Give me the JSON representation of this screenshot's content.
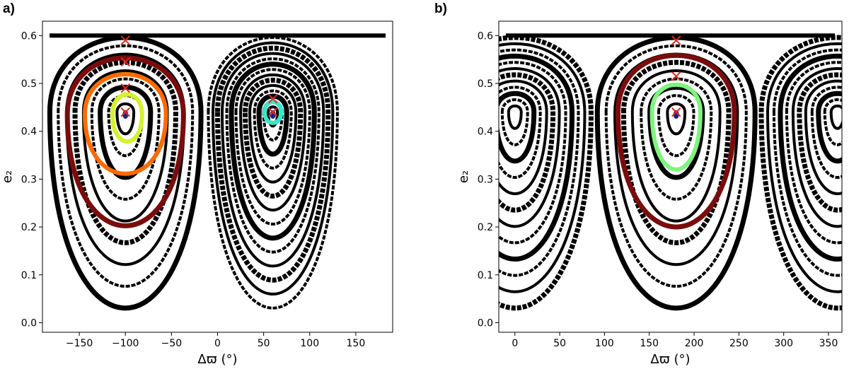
{
  "panels": [
    {
      "label": "a)"
    },
    {
      "label": "b)"
    }
  ],
  "colors": {
    "band": "#000000",
    "dark_red": "#7a0c0c",
    "orange": "#ff6a00",
    "yellow_green": "#d4f22a",
    "cyan": "#34e8c8",
    "light_green": "#7cf57c",
    "marker_red": "#e8241c",
    "center_blue": "#1a237e"
  },
  "chart_data": [
    {
      "type": "scatter",
      "title": "",
      "xlabel": "Δϖ (°)",
      "ylabel": "e₂",
      "xlim": [
        -190,
        190
      ],
      "ylim": [
        -0.02,
        0.63
      ],
      "xticks": [
        -150,
        -100,
        -50,
        0,
        50,
        100,
        150
      ],
      "yticks": [
        0.0,
        0.1,
        0.2,
        0.3,
        0.4,
        0.5,
        0.6
      ],
      "xticklabels": [
        "−150",
        "−100",
        "−50",
        "0",
        "50",
        "100",
        "150"
      ],
      "yticklabels": [
        "0.0",
        "0.1",
        "0.2",
        "0.3",
        "0.4",
        "0.5",
        "0.6"
      ],
      "grid": false,
      "background": "black level curves (phase-space map)",
      "islands": [
        {
          "center": [
            -100,
            0.44
          ],
          "ecc_max": 0.6,
          "ecc_min": 0.02,
          "x_half_width": 82,
          "bands": 9
        },
        {
          "center": [
            60,
            0.44
          ],
          "ecc_max": 0.6,
          "ecc_min": 0.02,
          "x_half_width": 70,
          "bands": 14
        }
      ],
      "series": [
        {
          "color": "dark_red",
          "center": [
            -100,
            0.435
          ],
          "x_half_width": 63,
          "y_max": 0.59,
          "y_min": 0.125
        },
        {
          "color": "orange",
          "center": [
            -100,
            0.435
          ],
          "x_half_width": 44,
          "y_max": 0.545,
          "y_min": 0.27
        },
        {
          "color": "yellow_green",
          "center": [
            -98,
            0.435
          ],
          "x_half_width": 16,
          "y_max": 0.49,
          "y_min": 0.36
        },
        {
          "color": "cyan",
          "center": [
            60,
            0.44
          ],
          "x_half_width": 9,
          "y_max": 0.468,
          "y_min": 0.41
        }
      ],
      "markers_x": [
        [
          -100,
          0.59
        ],
        [
          -100,
          0.545
        ],
        [
          -100,
          0.49
        ],
        [
          -100,
          0.44
        ],
        [
          60,
          0.468
        ],
        [
          60,
          0.44
        ]
      ],
      "markers_dot": [
        [
          -100,
          0.435
        ],
        [
          60,
          0.435
        ]
      ]
    },
    {
      "type": "scatter",
      "title": "",
      "xlabel": "Δϖ (°)",
      "ylabel": "e₂",
      "xlim": [
        -18,
        365
      ],
      "ylim": [
        -0.02,
        0.63
      ],
      "xticks": [
        0,
        50,
        100,
        150,
        200,
        250,
        300,
        350
      ],
      "yticks": [
        0.0,
        0.1,
        0.2,
        0.3,
        0.4,
        0.5,
        0.6
      ],
      "xticklabels": [
        "0",
        "50",
        "100",
        "150",
        "200",
        "250",
        "300",
        "350"
      ],
      "yticklabels": [
        "0.0",
        "0.1",
        "0.2",
        "0.3",
        "0.4",
        "0.5",
        "0.6"
      ],
      "grid": false,
      "background": "black level curves (phase-space map)",
      "islands": [
        {
          "center": [
            180,
            0.44
          ],
          "ecc_max": 0.6,
          "ecc_min": 0.02,
          "x_half_width": 88,
          "bands": 9
        },
        {
          "center": [
            0,
            0.44
          ],
          "ecc_max": 0.6,
          "ecc_min": 0.02,
          "x_half_width": 85,
          "bands": 12
        },
        {
          "center": [
            360,
            0.44
          ],
          "ecc_max": 0.6,
          "ecc_min": 0.02,
          "x_half_width": 85,
          "bands": 12
        }
      ],
      "series": [
        {
          "color": "dark_red",
          "center": [
            180,
            0.44
          ],
          "x_half_width": 65,
          "y_max": 0.595,
          "y_min": 0.12
        },
        {
          "color": "light_green",
          "center": [
            180,
            0.44
          ],
          "x_half_width": 27,
          "y_max": 0.515,
          "y_min": 0.28
        }
      ],
      "markers_x": [
        [
          180,
          0.59
        ],
        [
          180,
          0.515
        ],
        [
          180,
          0.44
        ]
      ],
      "markers_dot": [
        [
          180,
          0.435
        ]
      ]
    }
  ]
}
